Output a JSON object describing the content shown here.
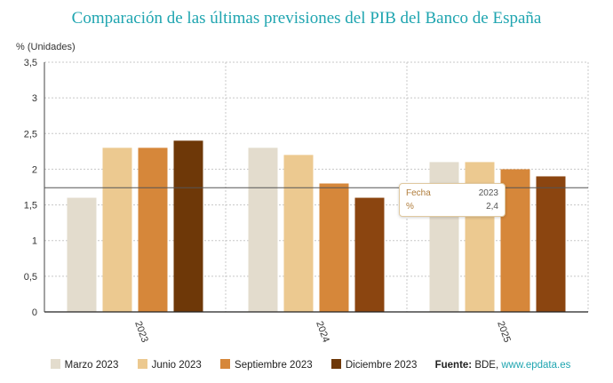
{
  "chart_data": {
    "type": "bar",
    "title": "Comparación de las últimas previsiones del PIB del Banco de España",
    "ylabel": "% (Unidades)",
    "xlabel": "",
    "categories": [
      "2023",
      "2024",
      "2025"
    ],
    "yticks": [
      "0",
      "0,5",
      "1",
      "1,5",
      "2",
      "2,5",
      "3",
      "3,5"
    ],
    "ylim": [
      0,
      3.5
    ],
    "grid": true,
    "reference_value": 1.74,
    "series": [
      {
        "name": "Marzo 2023",
        "color": "#e3dccd",
        "values": [
          1.6,
          2.3,
          2.1
        ]
      },
      {
        "name": "Junio 2023",
        "color": "#ecc990",
        "values": [
          2.3,
          2.2,
          2.1
        ]
      },
      {
        "name": "Septiembre 2023",
        "color": "#d6873a",
        "values": [
          2.3,
          1.8,
          2.0
        ]
      },
      {
        "name": "Diciembre 2023",
        "color": "#6e3808",
        "values": [
          2.4,
          1.6,
          1.9
        ]
      }
    ],
    "series_colors_alt": {
      "Diciembre 2023": [
        "#6e3808",
        "#8b4510",
        "#8b4510"
      ]
    }
  },
  "tooltip": {
    "fecha_label": "Fecha",
    "fecha_value": "2023",
    "pct_label": "%",
    "pct_value": "2,4"
  },
  "source": {
    "label": "Fuente:",
    "text": "BDE,",
    "link": "www.epdata.es"
  }
}
